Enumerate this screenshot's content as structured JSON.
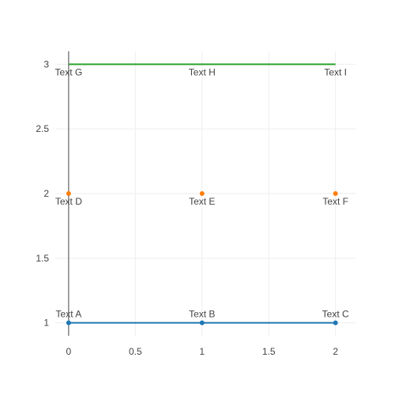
{
  "chart_data": {
    "type": "scatter",
    "title": "",
    "xlabel": "",
    "ylabel": "",
    "xlim": [
      -0.1,
      2.15
    ],
    "ylim": [
      0.9,
      3.1
    ],
    "x_ticks": [
      0,
      0.5,
      1,
      1.5,
      2
    ],
    "x_tick_labels": [
      "0",
      "0.5",
      "1",
      "1.5",
      "2"
    ],
    "y_ticks": [
      1,
      1.5,
      2,
      2.5,
      3
    ],
    "y_tick_labels": [
      "1",
      "1.5",
      "2",
      "2.5",
      "3"
    ],
    "grid": true,
    "legend": "none",
    "series": [
      {
        "mode": "lines+markers+text",
        "color": "#1f77b4",
        "x": [
          0,
          1,
          2
        ],
        "y": [
          1,
          1,
          1
        ],
        "text": [
          "Text A",
          "Text B",
          "Text C"
        ],
        "textposition": "top"
      },
      {
        "mode": "markers+text",
        "color": "#ff7f0e",
        "x": [
          0,
          1,
          2
        ],
        "y": [
          2,
          2,
          2
        ],
        "text": [
          "Text D",
          "Text E",
          "Text F"
        ],
        "textposition": "bottom"
      },
      {
        "mode": "lines+text",
        "color": "#2ca02c",
        "x": [
          0,
          1,
          2
        ],
        "y": [
          3,
          3,
          3
        ],
        "text": [
          "Text G",
          "Text H",
          "Text I"
        ],
        "textposition": "bottom"
      }
    ]
  }
}
